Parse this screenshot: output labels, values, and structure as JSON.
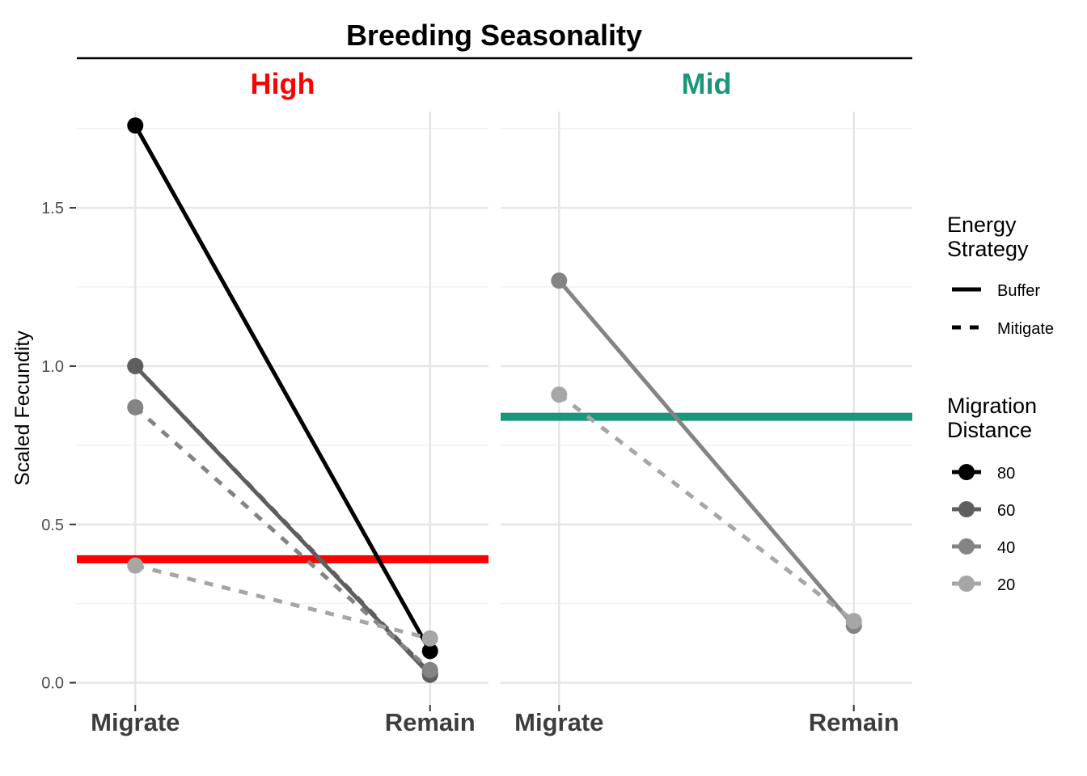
{
  "chart_data": {
    "type": "line",
    "title": "Breeding Seasonality",
    "ylabel": "Scaled Fecundity",
    "xlabel": "",
    "categories": [
      "Migrate",
      "Remain"
    ],
    "ylim": [
      -0.07,
      1.85
    ],
    "yticks": [
      0.0,
      0.5,
      1.0,
      1.5
    ],
    "ytick_labels": [
      "0.0",
      "0.5",
      "1.0",
      "1.5"
    ],
    "grid": true,
    "legend_position": "right",
    "legend": {
      "strategy_title": [
        "Energy",
        "Strategy"
      ],
      "strategies": [
        {
          "name": "Buffer",
          "linetype": "solid"
        },
        {
          "name": "Mitigate",
          "linetype": "dashed"
        }
      ],
      "distance_title": [
        "Migration",
        "Distance"
      ],
      "distances": [
        {
          "name": "80",
          "color": "#000000"
        },
        {
          "name": "60",
          "color": "#5e5e5e"
        },
        {
          "name": "40",
          "color": "#848484"
        },
        {
          "name": "20",
          "color": "#a6a6a6"
        }
      ]
    },
    "panels": [
      {
        "label": "High",
        "label_color": "#ff0000",
        "hline": 0.39,
        "series": [
          {
            "distance": "80",
            "strategy": "Buffer",
            "color": "#000000",
            "values": [
              1.76,
              0.1
            ]
          },
          {
            "distance": "60",
            "strategy": "Buffer",
            "color": "#5e5e5e",
            "values": [
              1.0,
              0.025
            ]
          },
          {
            "distance": "60",
            "strategy": "Mitigate",
            "color": "#5e5e5e",
            "values": [
              1.0,
              0.03
            ]
          },
          {
            "distance": "40",
            "strategy": "Mitigate",
            "color": "#848484",
            "values": [
              0.87,
              0.04
            ]
          },
          {
            "distance": "20",
            "strategy": "Mitigate",
            "color": "#a6a6a6",
            "values": [
              0.37,
              0.14
            ]
          }
        ]
      },
      {
        "label": "Mid",
        "label_color": "#1a977b",
        "hline": 0.84,
        "series": [
          {
            "distance": "40",
            "strategy": "Buffer",
            "color": "#848484",
            "values": [
              1.27,
              0.18
            ]
          },
          {
            "distance": "20",
            "strategy": "Mitigate",
            "color": "#a6a6a6",
            "values": [
              0.91,
              0.195
            ]
          }
        ]
      }
    ]
  }
}
